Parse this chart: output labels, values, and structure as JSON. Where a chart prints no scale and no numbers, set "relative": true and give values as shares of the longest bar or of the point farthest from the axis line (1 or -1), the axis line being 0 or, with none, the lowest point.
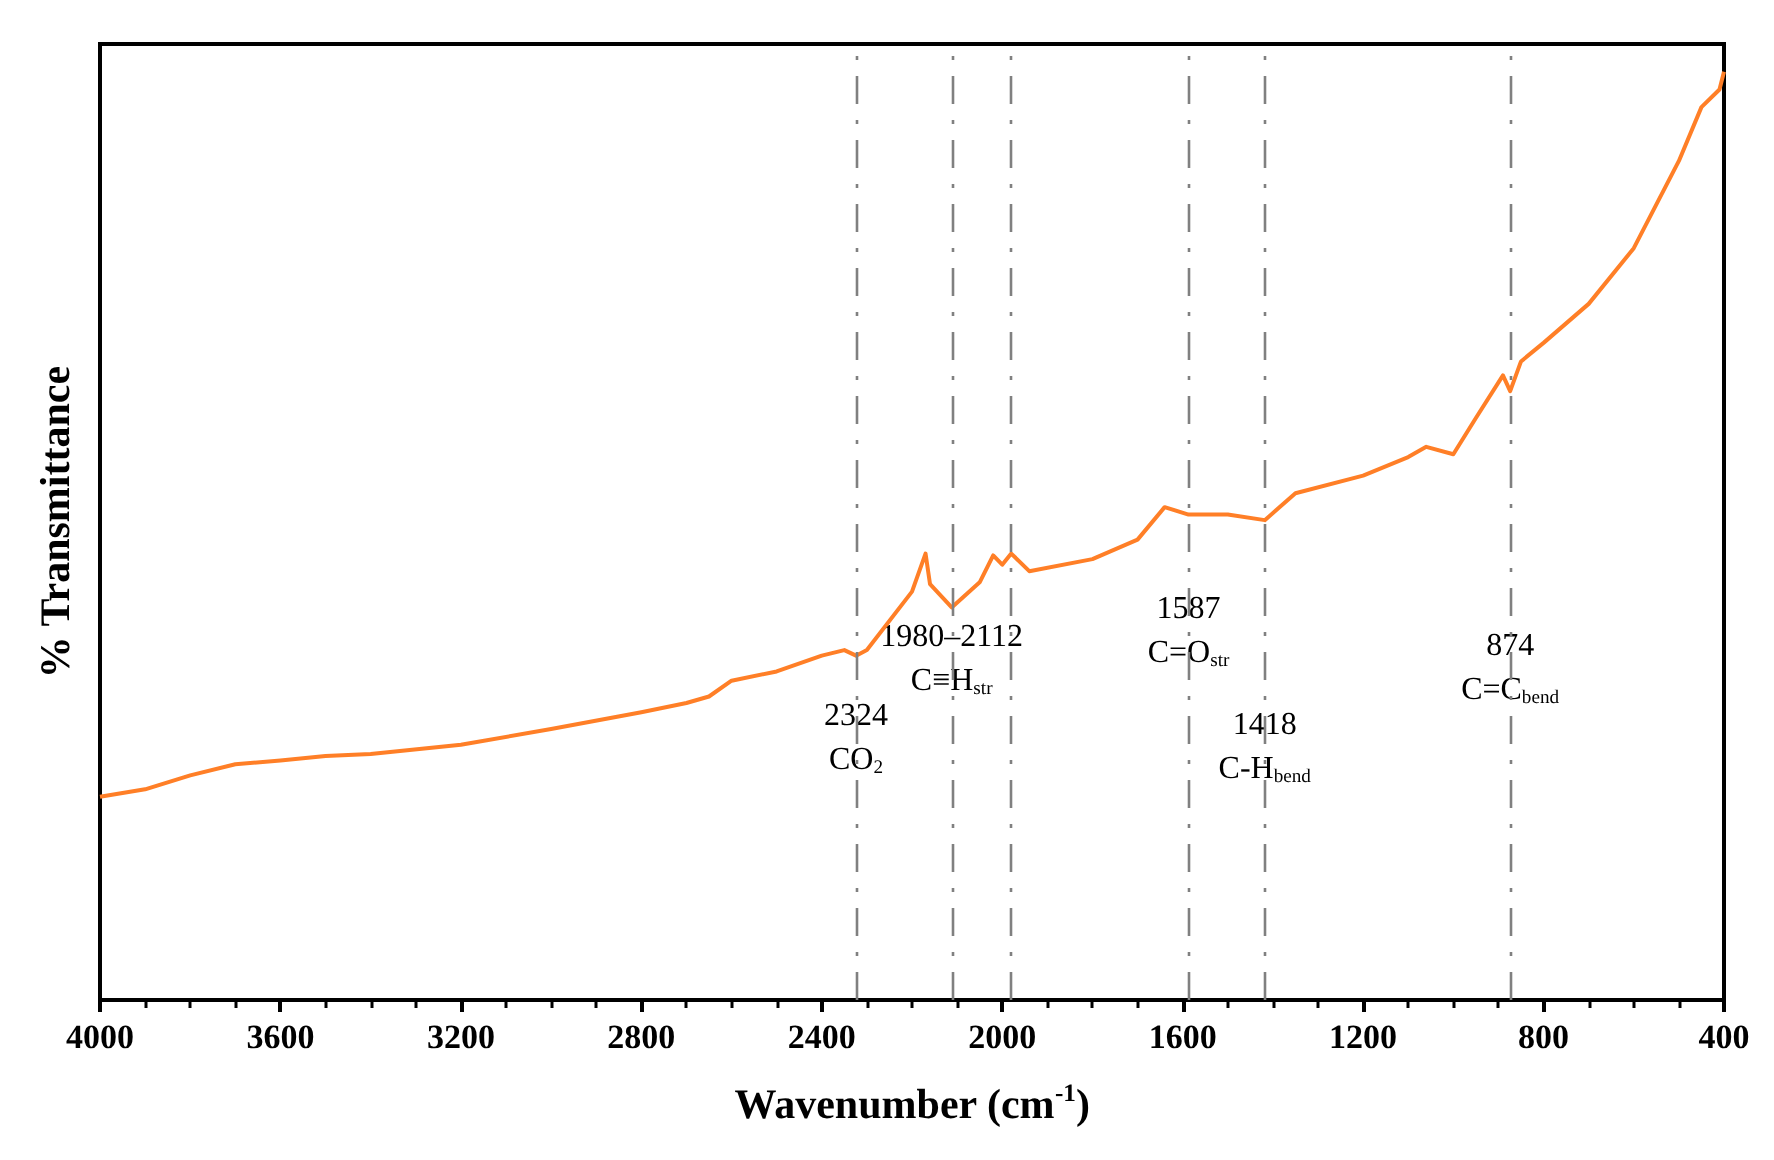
{
  "chart_data": {
    "type": "line",
    "relative": true,
    "xlabel": "Wavenumber (cm$^{-1}$)",
    "ylabel": "% Transmittance",
    "xlim": [
      4000,
      400
    ],
    "xticks": [
      4000,
      3600,
      3200,
      2800,
      2400,
      2000,
      1600,
      1200,
      800,
      400
    ],
    "grid": false,
    "marker": "none",
    "line_style": "solid",
    "series": [
      {
        "color": "#ff7f27",
        "x": [
          4000,
          3900,
          3800,
          3700,
          3600,
          3500,
          3400,
          3200,
          3000,
          2800,
          2700,
          2650,
          2600,
          2500,
          2400,
          2350,
          2324,
          2300,
          2200,
          2170,
          2160,
          2112,
          2050,
          2020,
          2000,
          1980,
          1940,
          1800,
          1700,
          1640,
          1587,
          1500,
          1418,
          1350,
          1200,
          1100,
          1060,
          1000,
          950,
          890,
          874,
          850,
          800,
          700,
          600,
          500,
          450,
          410,
          400
        ],
        "values": [
          0.219,
          0.227,
          0.242,
          0.254,
          0.258,
          0.263,
          0.265,
          0.275,
          0.292,
          0.31,
          0.32,
          0.327,
          0.344,
          0.354,
          0.371,
          0.377,
          0.371,
          0.377,
          0.44,
          0.481,
          0.448,
          0.423,
          0.45,
          0.479,
          0.469,
          0.481,
          0.462,
          0.475,
          0.496,
          0.531,
          0.523,
          0.523,
          0.517,
          0.546,
          0.565,
          0.585,
          0.596,
          0.588,
          0.627,
          0.673,
          0.656,
          0.688,
          0.708,
          0.75,
          0.81,
          0.904,
          0.962,
          0.981,
          1
        ]
      }
    ],
    "ref_lines": [
      {
        "axis": "x",
        "value": 2324,
        "color": "#808080",
        "line_style": "dashed"
      },
      {
        "axis": "x",
        "value": 2112,
        "color": "#808080",
        "line_style": "dashed"
      },
      {
        "axis": "x",
        "value": 1980,
        "color": "#808080",
        "line_style": "dashed"
      },
      {
        "axis": "x",
        "value": 1587,
        "color": "#808080",
        "line_style": "dashed"
      },
      {
        "axis": "x",
        "value": 1418,
        "color": "#808080",
        "line_style": "dashed"
      },
      {
        "axis": "x",
        "value": 874,
        "color": "#808080",
        "line_style": "dashed"
      }
    ],
    "annotations": [
      {
        "text": "2324\nCO$_{2}$",
        "x": 2324,
        "y": 0.235
      },
      {
        "text": "1980–2112\nC≡H$_{str}$",
        "x": 2112,
        "y": 0.32
      },
      {
        "text": "1587\nC=O$_{str}$",
        "x": 1587,
        "y": 0.35
      },
      {
        "text": "1418\nC-H$_{bend}$",
        "x": 1418,
        "y": 0.225
      },
      {
        "text": "874\nC=C$_{bend}$",
        "x": 874,
        "y": 0.31
      }
    ]
  }
}
